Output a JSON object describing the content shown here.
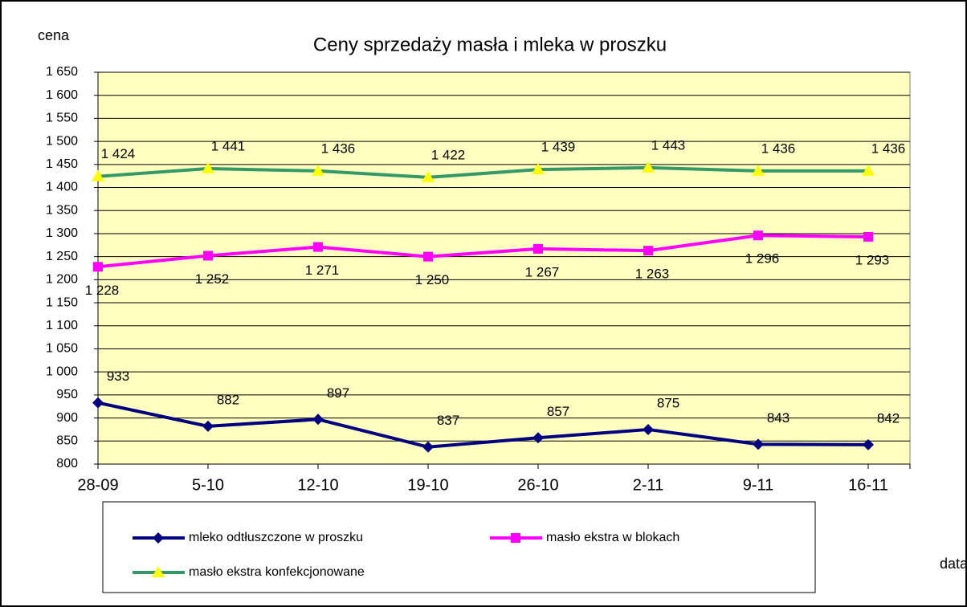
{
  "chart_data": {
    "type": "line",
    "title": "Ceny sprzedaży masła i mleka w proszku",
    "y_label": "cena",
    "x_label": "data",
    "categories": [
      "28-09",
      "5-10",
      "12-10",
      "19-10",
      "26-10",
      "2-11",
      "9-11",
      "16-11"
    ],
    "ylim": [
      800,
      1650
    ],
    "yticks": [
      {
        "value": 800,
        "label": "800"
      },
      850,
      900,
      950,
      {
        "value": 1000,
        "label": "1 000"
      },
      {
        "value": 1050,
        "label": "1 050"
      },
      {
        "value": 1100,
        "label": "1 100"
      },
      {
        "value": 1150,
        "label": "1 150"
      },
      {
        "value": 1200,
        "label": "1 200"
      },
      {
        "value": 1250,
        "label": "1 250"
      },
      {
        "value": 1300,
        "label": "1 300"
      },
      {
        "value": 1350,
        "label": "1 350"
      },
      {
        "value": 1400,
        "label": "1 400"
      },
      {
        "value": 1450,
        "label": "1 450"
      },
      {
        "value": 1500,
        "label": "1 500"
      },
      {
        "value": 1550,
        "label": "1 550"
      },
      {
        "value": 1600,
        "label": "1 600"
      },
      {
        "value": 1650,
        "label": "1 650"
      }
    ],
    "grid": true,
    "series": [
      {
        "name": "mleko odtłuszczone w proszku",
        "color": "#000080",
        "marker": "diamond",
        "values": [
          933,
          882,
          897,
          837,
          857,
          875,
          843,
          842
        ]
      },
      {
        "name": "masło ekstra w blokach",
        "color": "#ff00ff",
        "marker": "square",
        "values": [
          1228,
          1252,
          1271,
          1250,
          1267,
          1263,
          1296,
          1293
        ],
        "value_labels": [
          "1 228",
          "1 252",
          "1 271",
          "1 250",
          "1 267",
          "1 263",
          "1 296",
          "1 293"
        ]
      },
      {
        "name": "masło ekstra konfekcjonowane",
        "color": "#339966",
        "marker": "triangle",
        "marker_color": "#ffff00",
        "values": [
          1424,
          1441,
          1436,
          1422,
          1439,
          1443,
          1436,
          1436
        ],
        "value_labels": [
          "1 424",
          "1 441",
          "1 436",
          "1 422",
          "1 439",
          "1 443",
          "1 436",
          "1 436"
        ]
      }
    ]
  }
}
